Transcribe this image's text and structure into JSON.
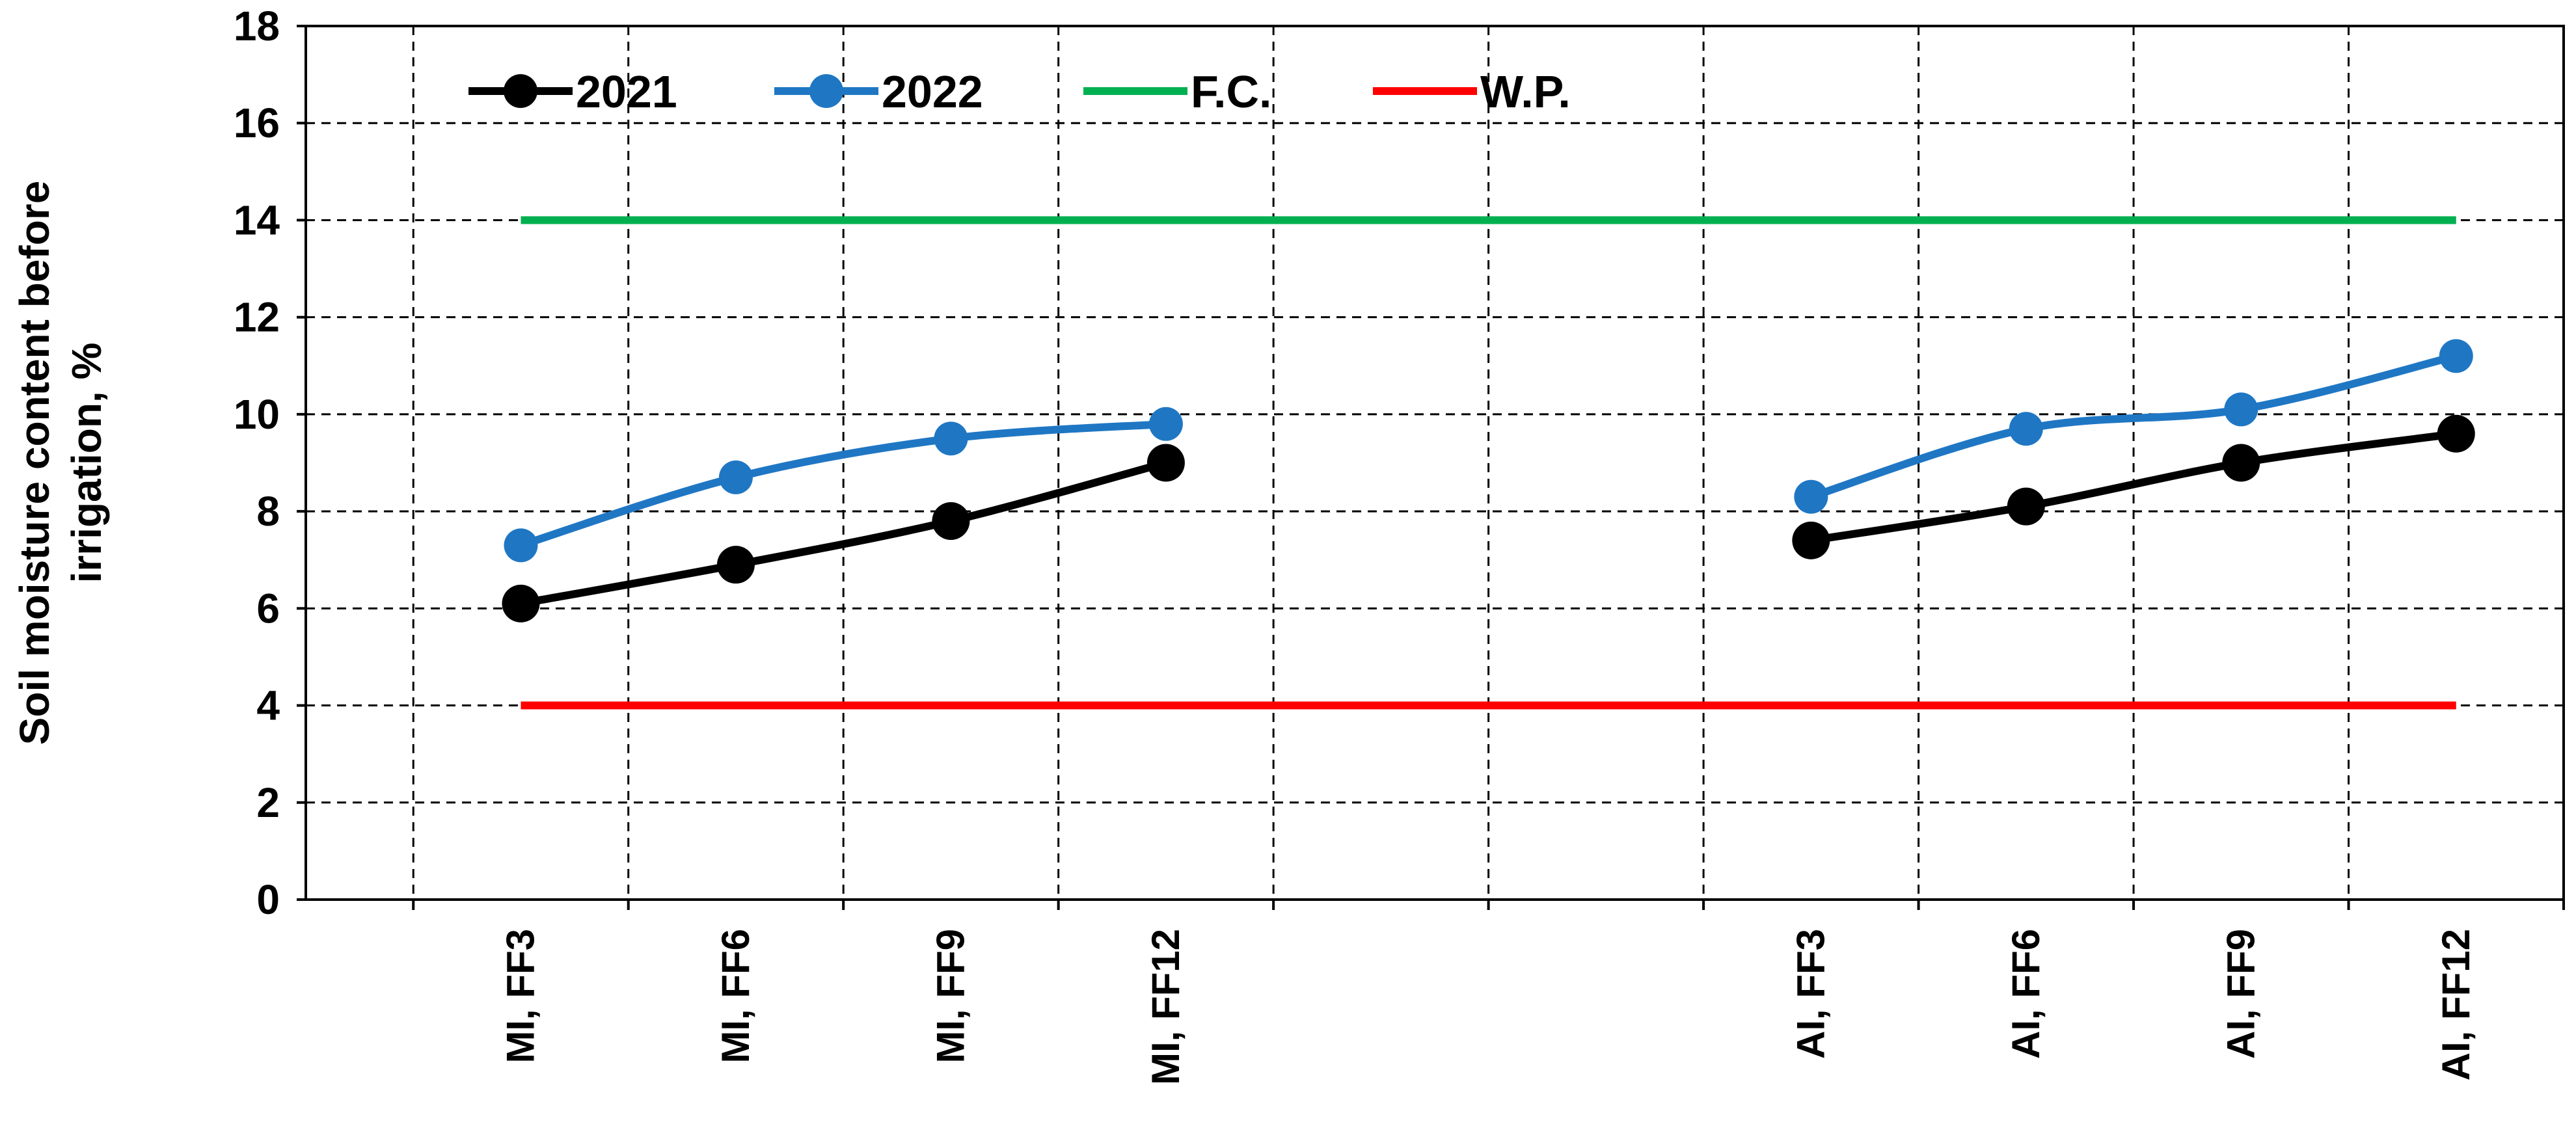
{
  "chart_data": {
    "type": "line",
    "title": "",
    "ylabel_lines": [
      "Soil moisture content before",
      "irrigation, %"
    ],
    "xlabel": "",
    "ylim": [
      0,
      18
    ],
    "yticks": [
      "0",
      "2",
      "4",
      "6",
      "8",
      "10",
      "12",
      "14",
      "16",
      "18"
    ],
    "grid": true,
    "legend_position": "top-left",
    "categories": [
      "MI, FF3",
      "MI, FF6",
      "MI, FF9",
      "MI, FF12",
      "",
      "",
      "AI, FF3",
      "AI, FF6",
      "AI, FF9",
      "AI, FF12"
    ],
    "series": [
      {
        "name": "2021",
        "color": "#000000",
        "marker": "circle",
        "values": [
          6.1,
          6.9,
          7.8,
          9.0,
          null,
          null,
          7.4,
          8.1,
          9.0,
          9.6
        ]
      },
      {
        "name": "2022",
        "color": "#1f77c4",
        "marker": "circle",
        "values": [
          7.3,
          8.7,
          9.5,
          9.8,
          null,
          null,
          8.3,
          9.7,
          10.1,
          11.2
        ]
      },
      {
        "name": "F.C.",
        "color": "#00b050",
        "marker": "none",
        "values": [
          14,
          14,
          14,
          14,
          14,
          14,
          14,
          14,
          14,
          14
        ]
      },
      {
        "name": "W.P.",
        "color": "#ff0000",
        "marker": "none",
        "values": [
          4,
          4,
          4,
          4,
          4,
          4,
          4,
          4,
          4,
          4
        ]
      }
    ]
  }
}
